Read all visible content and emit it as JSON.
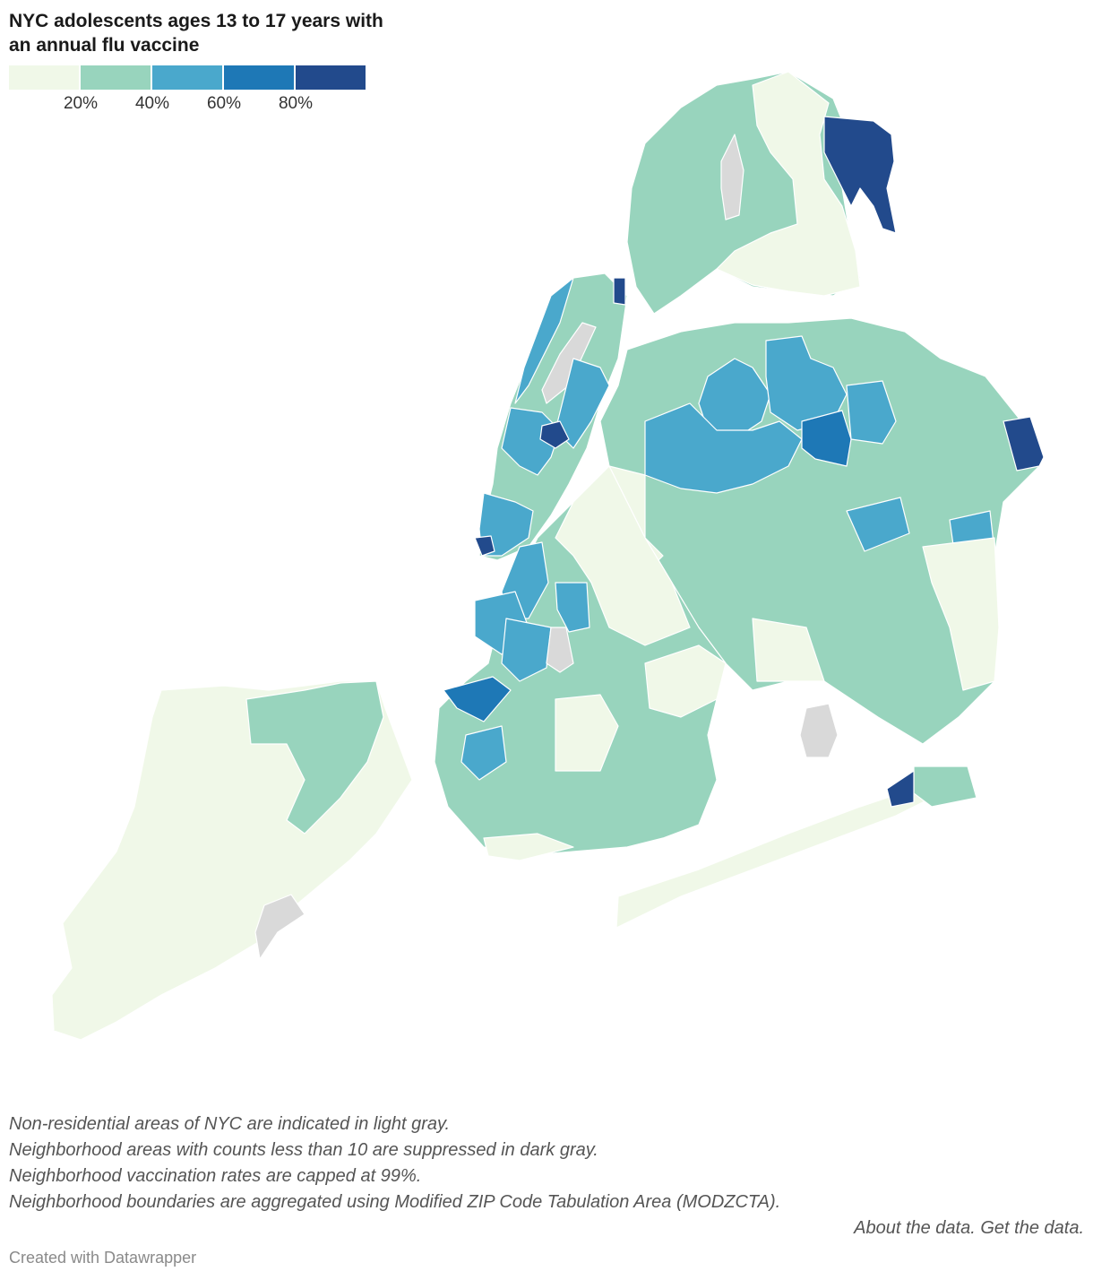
{
  "title": "NYC adolescents ages 13 to 17 years with an annual flu vaccine",
  "legend": {
    "bins": [
      {
        "color": "#f0f8e8"
      },
      {
        "color": "#98d4bd"
      },
      {
        "color": "#4aa8cc"
      },
      {
        "color": "#1e78b6"
      },
      {
        "color": "#224a8c"
      }
    ],
    "tick_labels": [
      "20%",
      "40%",
      "60%",
      "80%"
    ]
  },
  "colors": {
    "nonresidential": "#d9d9d9",
    "background": "#ffffff",
    "boundary": "#ffffff"
  },
  "notes": [
    "Non-residential areas of NYC are indicated in light gray.",
    "Neighborhood areas with counts less than 10 are suppressed in dark gray.",
    "Neighborhood vaccination rates are capped at 99%.",
    "Neighborhood boundaries are aggregated using Modified ZIP Code Tabulation Area (MODZCTA)."
  ],
  "links": {
    "about": "About the data.",
    "get": "Get the data."
  },
  "credit": "Created with Datawrapper"
}
